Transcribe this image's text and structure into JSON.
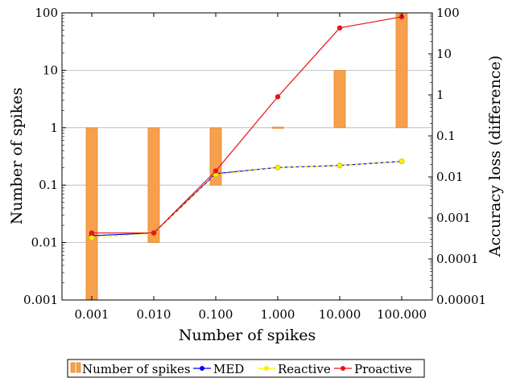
{
  "chart_data": {
    "type": "bar+line",
    "xlabel": "Number of spikes",
    "ylabel_left": "Number of spikes",
    "ylabel_right": "Accuracy loss (difference)",
    "x_ticks": [
      "0.001",
      "0.010",
      "0.100",
      "1.000",
      "10.000",
      "100.000"
    ],
    "y_left_scale": "log",
    "y_left_range": [
      0.001,
      100
    ],
    "y_left_ticks": [
      "0.001",
      "0.01",
      "0.1",
      "1",
      "10",
      "100"
    ],
    "y_right_scale": "log",
    "y_right_range": [
      1e-05,
      100
    ],
    "y_right_ticks": [
      "0.00001",
      "0.0001",
      "0.001",
      "0.01",
      "0.1",
      "1",
      "10",
      "100"
    ],
    "grid": "horizontal",
    "bars": {
      "name": "Number of spikes",
      "color": "#f6a04d",
      "stroke": "#e9872a",
      "ranges": [
        {
          "x": "0.001",
          "low": 0.001,
          "high": 1
        },
        {
          "x": "0.010",
          "low": 0.01,
          "high": 1
        },
        {
          "x": "0.100",
          "low": 0.1,
          "high": 1
        },
        {
          "x": "1.000",
          "low": 1,
          "high": 1
        },
        {
          "x": "10.000",
          "low": 1,
          "high": 10
        },
        {
          "x": "100.000",
          "low": 1,
          "high": 100
        }
      ]
    },
    "series": [
      {
        "name": "MED",
        "color": "#0000ff",
        "axis": "right",
        "values": [
          0.00037,
          0.00043,
          0.012,
          0.017,
          0.019,
          0.024
        ]
      },
      {
        "name": "Reactive",
        "color": "#ffee00",
        "axis": "right",
        "values": [
          0.00033,
          0.00042,
          0.0115,
          0.017,
          0.019,
          0.024
        ]
      },
      {
        "name": "Proactive",
        "color": "#e8141c",
        "axis": "right",
        "values": [
          0.00043,
          0.00043,
          0.014,
          0.9,
          43,
          80
        ]
      }
    ],
    "legend_position": "bottom-center"
  }
}
